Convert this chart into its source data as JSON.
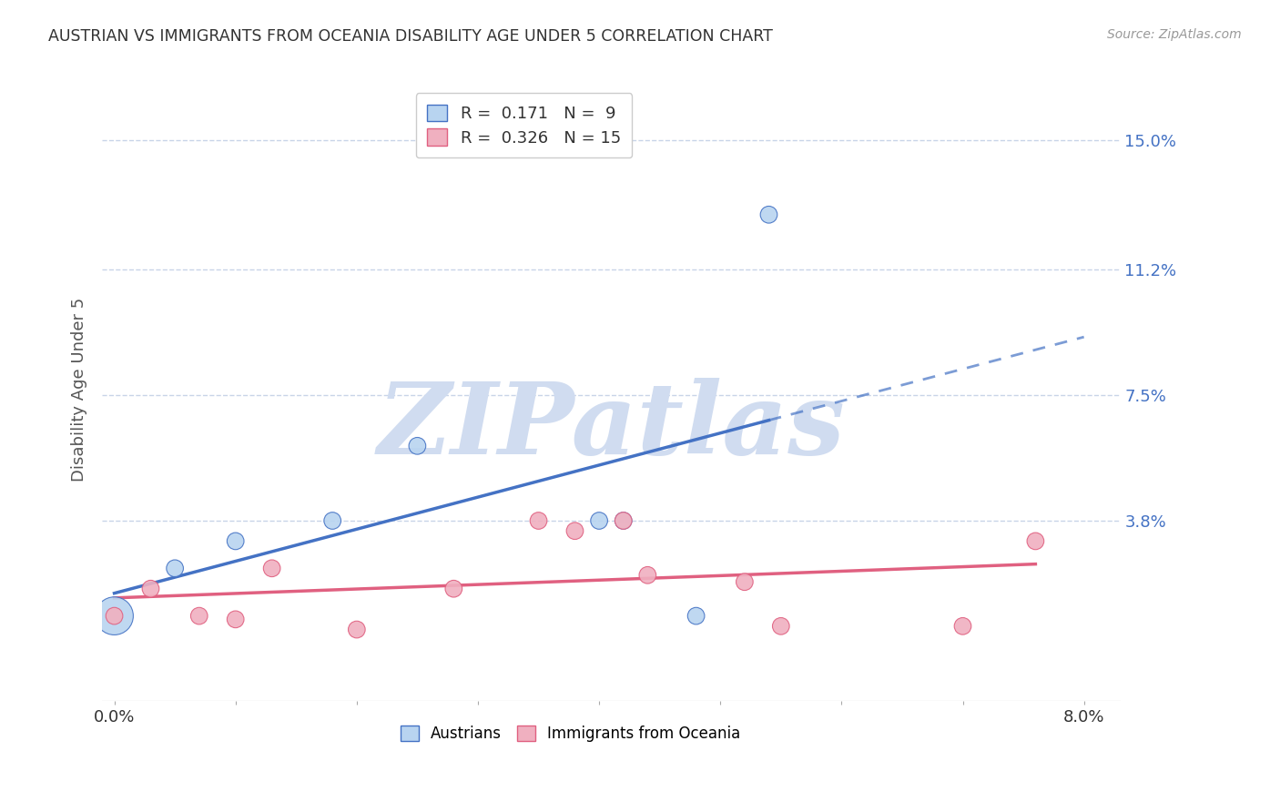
{
  "title": "AUSTRIAN VS IMMIGRANTS FROM OCEANIA DISABILITY AGE UNDER 5 CORRELATION CHART",
  "source": "Source: ZipAtlas.com",
  "ylabel": "Disability Age Under 5",
  "ytick_labels": [
    "15.0%",
    "11.2%",
    "7.5%",
    "3.8%"
  ],
  "ytick_values": [
    0.15,
    0.112,
    0.075,
    0.038
  ],
  "xlim": [
    -0.001,
    0.083
  ],
  "ylim": [
    -0.015,
    0.168
  ],
  "austrians_x": [
    0.0,
    0.005,
    0.01,
    0.018,
    0.025,
    0.04,
    0.042,
    0.048,
    0.054
  ],
  "austrians_y": [
    0.01,
    0.024,
    0.032,
    0.038,
    0.06,
    0.038,
    0.038,
    0.01,
    0.128
  ],
  "austrians_size": [
    500,
    100,
    100,
    100,
    100,
    100,
    100,
    100,
    100
  ],
  "immigrants_x": [
    0.0,
    0.003,
    0.007,
    0.01,
    0.013,
    0.02,
    0.028,
    0.035,
    0.038,
    0.042,
    0.044,
    0.052,
    0.055,
    0.07,
    0.076
  ],
  "immigrants_y": [
    0.01,
    0.018,
    0.01,
    0.009,
    0.024,
    0.006,
    0.018,
    0.038,
    0.035,
    0.038,
    0.022,
    0.02,
    0.007,
    0.007,
    0.032
  ],
  "immigrants_size": [
    100,
    100,
    100,
    100,
    100,
    100,
    100,
    100,
    100,
    100,
    100,
    100,
    100,
    100,
    100
  ],
  "austrians_color": "#b8d4f0",
  "immigrants_color": "#f0b0c0",
  "austrians_line_color": "#4472c4",
  "immigrants_line_color": "#e06080",
  "legend_R_austrians": "0.171",
  "legend_N_austrians": "9",
  "legend_R_immigrants": "0.326",
  "legend_N_immigrants": "15",
  "background_color": "#ffffff",
  "grid_color": "#c8d4e8",
  "axis_color": "#4472c4",
  "watermark_text": "ZIPatlas",
  "watermark_color": "#d0dcf0"
}
